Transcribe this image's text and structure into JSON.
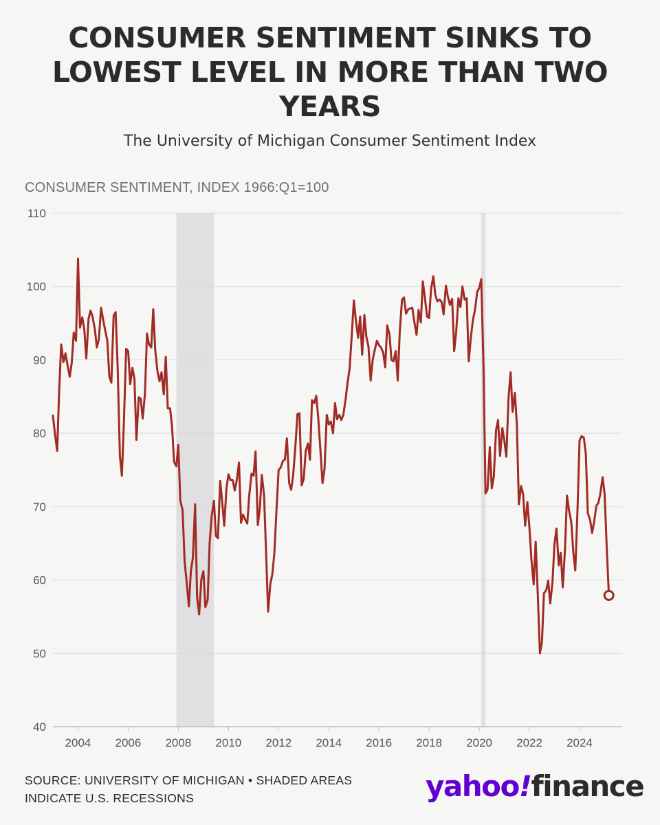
{
  "header": {
    "title": "CONSUMER SENTIMENT SINKS TO LOWEST LEVEL IN MORE THAN TWO YEARS",
    "subtitle": "The University of Michigan Consumer Sentiment Index"
  },
  "footer": {
    "source": "SOURCE: UNIVERSITY OF MICHIGAN • SHADED AREAS INDICATE U.S. RECESSIONS"
  },
  "logo": {
    "word1": "yahoo",
    "mark": "!",
    "word2": "finance"
  },
  "chart_data": {
    "type": "line",
    "title": "CONSUMER SENTIMENT SINKS TO LOWEST LEVEL IN MORE THAN TWO YEARS",
    "subtitle": "The University of Michigan Consumer Sentiment Index",
    "ylabel": "CONSUMER SENTIMENT, INDEX 1966:Q1=100",
    "xlabel": "",
    "xlim": [
      2003.0,
      2025.7
    ],
    "ylim": [
      40,
      110
    ],
    "yticks": [
      40,
      50,
      60,
      70,
      80,
      90,
      100,
      110
    ],
    "xticks": [
      2004,
      2006,
      2008,
      2010,
      2012,
      2014,
      2016,
      2018,
      2020,
      2022,
      2024
    ],
    "grid": true,
    "line_color": "#a12b25",
    "recession_color": "#e0e0e2",
    "recessions": [
      {
        "start": 2007.92,
        "end": 2009.42
      },
      {
        "start": 2020.08,
        "end": 2020.25
      }
    ],
    "highlight_point": {
      "x": 2025.17,
      "y": 57.9
    },
    "series": [
      {
        "x": [
          2003.0,
          2003.08,
          2003.17,
          2003.25,
          2003.33,
          2003.42,
          2003.5,
          2003.58,
          2003.67,
          2003.75,
          2003.83,
          2003.92,
          2004.0,
          2004.08,
          2004.17,
          2004.25,
          2004.33,
          2004.42,
          2004.5,
          2004.58,
          2004.67,
          2004.75,
          2004.83,
          2004.92,
          2005.0,
          2005.08,
          2005.17,
          2005.25,
          2005.33,
          2005.42,
          2005.5,
          2005.58,
          2005.67,
          2005.75,
          2005.83,
          2005.92,
          2006.0,
          2006.08,
          2006.17,
          2006.25,
          2006.33,
          2006.42,
          2006.5,
          2006.58,
          2006.67,
          2006.75,
          2006.83,
          2006.92,
          2007.0,
          2007.08,
          2007.17,
          2007.25,
          2007.33,
          2007.42,
          2007.5,
          2007.58,
          2007.67,
          2007.75,
          2007.83,
          2007.92,
          2008.0,
          2008.08,
          2008.17,
          2008.25,
          2008.33,
          2008.42,
          2008.5,
          2008.58,
          2008.67,
          2008.75,
          2008.83,
          2008.92,
          2009.0,
          2009.08,
          2009.17,
          2009.25,
          2009.33,
          2009.42,
          2009.5,
          2009.58,
          2009.67,
          2009.75,
          2009.83,
          2009.92,
          2010.0,
          2010.08,
          2010.17,
          2010.25,
          2010.33,
          2010.42,
          2010.5,
          2010.58,
          2010.67,
          2010.75,
          2010.83,
          2010.92,
          2011.0,
          2011.08,
          2011.17,
          2011.25,
          2011.33,
          2011.42,
          2011.5,
          2011.58,
          2011.67,
          2011.75,
          2011.83,
          2011.92,
          2012.0,
          2012.08,
          2012.17,
          2012.25,
          2012.33,
          2012.42,
          2012.5,
          2012.58,
          2012.67,
          2012.75,
          2012.83,
          2012.92,
          2013.0,
          2013.08,
          2013.17,
          2013.25,
          2013.33,
          2013.42,
          2013.5,
          2013.58,
          2013.67,
          2013.75,
          2013.83,
          2013.92,
          2014.0,
          2014.08,
          2014.17,
          2014.25,
          2014.33,
          2014.42,
          2014.5,
          2014.58,
          2014.67,
          2014.75,
          2014.83,
          2014.92,
          2015.0,
          2015.08,
          2015.17,
          2015.25,
          2015.33,
          2015.42,
          2015.5,
          2015.58,
          2015.67,
          2015.75,
          2015.83,
          2015.92,
          2016.0,
          2016.08,
          2016.17,
          2016.25,
          2016.33,
          2016.42,
          2016.5,
          2016.58,
          2016.67,
          2016.75,
          2016.83,
          2016.92,
          2017.0,
          2017.08,
          2017.17,
          2017.25,
          2017.33,
          2017.42,
          2017.5,
          2017.58,
          2017.67,
          2017.75,
          2017.83,
          2017.92,
          2018.0,
          2018.08,
          2018.17,
          2018.25,
          2018.33,
          2018.42,
          2018.5,
          2018.58,
          2018.67,
          2018.75,
          2018.83,
          2018.92,
          2019.0,
          2019.08,
          2019.17,
          2019.25,
          2019.33,
          2019.42,
          2019.5,
          2019.58,
          2019.67,
          2019.75,
          2019.83,
          2019.92,
          2020.0,
          2020.08,
          2020.17,
          2020.25,
          2020.33,
          2020.42,
          2020.5,
          2020.58,
          2020.67,
          2020.75,
          2020.83,
          2020.92,
          2021.0,
          2021.08,
          2021.17,
          2021.25,
          2021.33,
          2021.42,
          2021.5,
          2021.58,
          2021.67,
          2021.75,
          2021.83,
          2021.92,
          2022.0,
          2022.08,
          2022.17,
          2022.25,
          2022.33,
          2022.42,
          2022.5,
          2022.58,
          2022.67,
          2022.75,
          2022.83,
          2022.92,
          2023.0,
          2023.08,
          2023.17,
          2023.25,
          2023.33,
          2023.42,
          2023.5,
          2023.58,
          2023.67,
          2023.75,
          2023.83,
          2023.92,
          2024.0,
          2024.08,
          2024.17,
          2024.25,
          2024.33,
          2024.42,
          2024.5,
          2024.58,
          2024.67,
          2024.75,
          2024.83,
          2024.92,
          2025.0,
          2025.08,
          2025.17
        ],
        "values": [
          82.4,
          79.9,
          77.6,
          86.0,
          92.1,
          89.7,
          90.9,
          89.3,
          87.7,
          89.6,
          93.7,
          92.6,
          103.8,
          94.4,
          95.8,
          94.2,
          90.2,
          95.6,
          96.7,
          95.9,
          94.2,
          91.7,
          92.8,
          97.1,
          95.5,
          94.1,
          92.6,
          87.7,
          86.9,
          96.0,
          96.5,
          89.1,
          76.9,
          74.2,
          81.6,
          91.5,
          91.2,
          86.7,
          88.9,
          87.4,
          79.1,
          84.9,
          84.7,
          82.0,
          85.4,
          93.6,
          92.1,
          91.7,
          96.9,
          91.3,
          88.4,
          87.1,
          88.3,
          85.3,
          90.4,
          83.4,
          83.4,
          80.9,
          76.1,
          75.5,
          78.4,
          70.8,
          69.5,
          62.6,
          59.8,
          56.4,
          61.2,
          63.0,
          70.3,
          57.6,
          55.3,
          60.1,
          61.2,
          56.3,
          57.3,
          65.1,
          68.7,
          70.8,
          66.0,
          65.7,
          73.5,
          70.6,
          67.4,
          72.5,
          74.4,
          73.6,
          73.6,
          72.2,
          73.6,
          76.0,
          67.8,
          68.9,
          68.2,
          67.7,
          71.6,
          74.5,
          74.2,
          77.5,
          67.5,
          69.8,
          74.3,
          71.5,
          63.7,
          55.7,
          59.5,
          60.8,
          63.7,
          69.9,
          75.0,
          75.3,
          76.2,
          76.4,
          79.3,
          73.2,
          72.3,
          74.3,
          78.3,
          82.6,
          82.7,
          72.9,
          73.8,
          77.6,
          78.6,
          76.4,
          84.5,
          84.1,
          85.1,
          82.1,
          77.5,
          73.2,
          75.1,
          82.5,
          81.2,
          81.6,
          80.0,
          84.1,
          81.9,
          82.5,
          81.8,
          82.5,
          84.6,
          86.9,
          88.8,
          93.6,
          98.1,
          95.4,
          93.0,
          95.9,
          90.7,
          96.1,
          93.1,
          91.9,
          87.2,
          90.0,
          91.3,
          92.6,
          92.0,
          91.7,
          91.0,
          89.0,
          94.7,
          93.5,
          90.0,
          89.8,
          91.2,
          87.2,
          93.8,
          98.2,
          98.5,
          96.3,
          96.9,
          97.0,
          97.1,
          95.0,
          93.4,
          96.8,
          95.1,
          100.7,
          98.5,
          95.9,
          95.7,
          99.7,
          101.4,
          98.8,
          98.0,
          98.2,
          97.9,
          96.2,
          100.1,
          98.6,
          97.5,
          98.3,
          91.2,
          93.8,
          98.4,
          97.2,
          100.0,
          98.2,
          98.4,
          89.8,
          93.2,
          95.5,
          96.8,
          99.3,
          99.8,
          101.0,
          89.1,
          71.8,
          72.3,
          78.1,
          72.5,
          74.1,
          80.4,
          81.8,
          76.9,
          80.7,
          79.0,
          76.8,
          84.9,
          88.3,
          82.9,
          85.5,
          81.2,
          70.3,
          72.8,
          71.7,
          67.4,
          70.6,
          67.2,
          62.8,
          59.4,
          65.2,
          58.4,
          50.0,
          51.5,
          58.2,
          58.6,
          59.9,
          56.8,
          59.7,
          64.9,
          67.0,
          62.0,
          63.7,
          59.0,
          64.2,
          71.5,
          69.5,
          67.9,
          63.8,
          61.3,
          69.7,
          79.0,
          79.6,
          79.4,
          77.2,
          69.1,
          68.2,
          66.4,
          67.9,
          70.1,
          70.5,
          71.8,
          74.0,
          71.7,
          64.7,
          57.9
        ]
      }
    ]
  }
}
